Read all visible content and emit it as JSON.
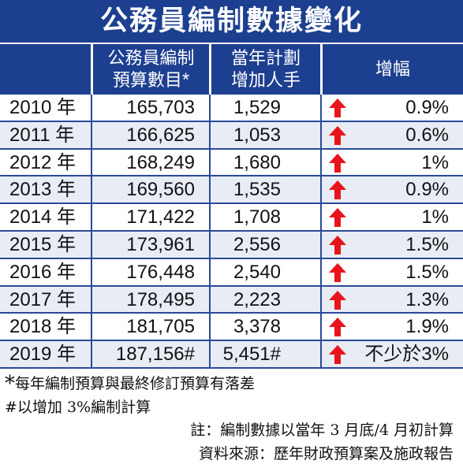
{
  "title": "公務員編制數據變化",
  "headers": {
    "year": "",
    "budget_line1": "公務員編制",
    "budget_line2": "預算數目",
    "budget_star": "*",
    "added_line1": "當年計劃",
    "added_line2": "增加人手",
    "increase": "增幅"
  },
  "colors": {
    "header_bg": "#1d3f8f",
    "arrow": "#e8141b",
    "row_alt": "#e8ecf5"
  },
  "chart_data": {
    "type": "table",
    "title": "公務員編制數據變化",
    "columns": [
      "",
      "公務員編制預算數目*",
      "當年計劃增加人手",
      "增幅"
    ],
    "rows": [
      {
        "year": "2010 年",
        "budget": "165,703",
        "added": "1,529",
        "increase": "0.9%",
        "direction": "up"
      },
      {
        "year": "2011 年",
        "budget": "166,625",
        "added": "1,053",
        "increase": "0.6%",
        "direction": "up"
      },
      {
        "year": "2012 年",
        "budget": "168,249",
        "added": "1,680",
        "increase": "1%",
        "direction": "up"
      },
      {
        "year": "2013 年",
        "budget": "169,560",
        "added": "1,535",
        "increase": "0.9%",
        "direction": "up"
      },
      {
        "year": "2014 年",
        "budget": "171,422",
        "added": "1,708",
        "increase": "1%",
        "direction": "up"
      },
      {
        "year": "2015 年",
        "budget": "173,961",
        "added": "2,556",
        "increase": "1.5%",
        "direction": "up"
      },
      {
        "year": "2016 年",
        "budget": "176,448",
        "added": "2,540",
        "increase": "1.5%",
        "direction": "up"
      },
      {
        "year": "2017 年",
        "budget": "178,495",
        "added": "2,223",
        "increase": "1.3%",
        "direction": "up"
      },
      {
        "year": "2018 年",
        "budget": "181,705",
        "added": "3,378",
        "increase": "1.9%",
        "direction": "up"
      },
      {
        "year": "2019 年",
        "budget": "187,156#",
        "added": "5,451#",
        "increase": "不少於3%",
        "direction": "up"
      }
    ]
  },
  "notes": {
    "star_mark": "*",
    "star_note": "每年編制預算與最終修訂預算有落差",
    "hash_note": "#以增加 3%編制計算",
    "remark": "註：編制數據以當年 3 月底/4 月初計算",
    "source": "資料來源：歷年財政預算案及施政報告"
  }
}
